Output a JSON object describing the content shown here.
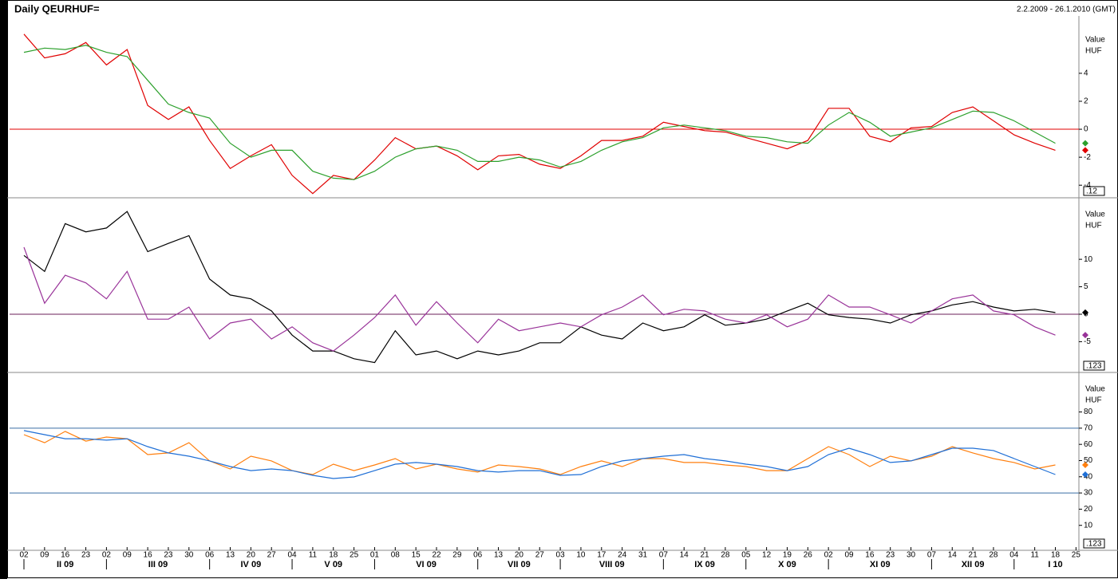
{
  "chart_data": [
    {
      "type": "line",
      "title": "Daily QEURHUF=",
      "subtitle": "2.2.2009 - 26.1.2010 (GMT)",
      "value_label": "Value",
      "unit": "HUF",
      "scale_box": ".12",
      "ylim": [
        -4.9,
        8.1
      ],
      "yticks": [
        -4,
        -2,
        0,
        2,
        4
      ],
      "hlines": [
        {
          "value": 0,
          "color": "#e00000"
        }
      ],
      "series": [
        {
          "color": "#e00000",
          "values": [
            6.8,
            5.1,
            5.4,
            6.2,
            4.6,
            5.7,
            1.7,
            0.7,
            1.6,
            -0.8,
            -2.8,
            -1.9,
            -1.1,
            -3.3,
            -4.6,
            -3.3,
            -3.6,
            -2.2,
            -0.6,
            -1.4,
            -1.2,
            -1.9,
            -2.9,
            -1.9,
            -1.8,
            -2.5,
            -2.8,
            -1.9,
            -0.8,
            -0.8,
            -0.5,
            0.5,
            0.2,
            -0.1,
            -0.2,
            -0.6,
            -1.0,
            -1.4,
            -0.8,
            1.5,
            1.5,
            -0.5,
            -0.9,
            0.1,
            0.2,
            1.2,
            1.6,
            0.6,
            -0.4,
            -1.0,
            -1.5,
            null
          ]
        },
        {
          "color": "#2ca02c",
          "values": [
            5.5,
            5.8,
            5.7,
            6.0,
            5.5,
            5.2,
            3.5,
            1.8,
            1.2,
            0.8,
            -1.0,
            -2.0,
            -1.5,
            -1.5,
            -3.0,
            -3.5,
            -3.6,
            -3.0,
            -2.0,
            -1.4,
            -1.2,
            -1.5,
            -2.3,
            -2.3,
            -2.0,
            -2.2,
            -2.7,
            -2.3,
            -1.5,
            -0.9,
            -0.6,
            0.1,
            0.3,
            0.1,
            -0.1,
            -0.5,
            -0.6,
            -0.9,
            -1.0,
            0.3,
            1.2,
            0.5,
            -0.5,
            -0.2,
            0.1,
            0.7,
            1.3,
            1.2,
            0.6,
            -0.2,
            -1.0,
            null
          ]
        }
      ]
    },
    {
      "type": "line",
      "value_label": "Value",
      "unit": "HUF",
      "scale_box": ".123",
      "ylim": [
        -10.6,
        21.2
      ],
      "yticks": [
        -5,
        0,
        5,
        10
      ],
      "hlines": [
        {
          "value": 0,
          "color": "#6b1f5a"
        }
      ],
      "series": [
        {
          "color": "#000000",
          "values": [
            10.7,
            7.8,
            16.5,
            15,
            15.7,
            18.7,
            11.4,
            12.9,
            14.3,
            6.4,
            3.5,
            2.8,
            0.6,
            -3.8,
            -6.7,
            -6.7,
            -8.1,
            -8.8,
            -3.0,
            -7.4,
            -6.7,
            -8.1,
            -6.7,
            -7.4,
            -6.7,
            -5.2,
            -5.2,
            -2.3,
            -3.8,
            -4.5,
            -1.6,
            -3.0,
            -2.3,
            -0.1,
            -2.0,
            -1.6,
            -0.9,
            0.6,
            2.0,
            -0.1,
            -0.6,
            -0.9,
            -1.6,
            -0.1,
            0.6,
            1.7,
            2.3,
            1.3,
            0.6,
            0.9,
            0.3,
            null
          ]
        },
        {
          "color": "#993399",
          "values": [
            12.2,
            2.0,
            7.1,
            5.7,
            2.8,
            7.8,
            -0.9,
            -0.9,
            1.3,
            -4.5,
            -1.6,
            -0.9,
            -4.5,
            -2.3,
            -5.2,
            -6.7,
            -3.8,
            -0.6,
            3.5,
            -2.0,
            2.3,
            -1.6,
            -5.2,
            -0.9,
            -3.0,
            -2.3,
            -1.6,
            -2.3,
            -0.1,
            1.3,
            3.5,
            -0.1,
            0.9,
            0.6,
            -0.9,
            -1.6,
            -0.1,
            -2.3,
            -0.9,
            3.5,
            1.3,
            1.3,
            -0.1,
            -1.6,
            0.6,
            2.8,
            3.5,
            0.6,
            -0.1,
            -2.3,
            -3.8,
            null
          ]
        }
      ]
    },
    {
      "type": "line",
      "value_label": "Value",
      "unit": "HUF",
      "scale_box": ".123",
      "ylim": [
        -5.4,
        104.4
      ],
      "yticks": [
        10,
        20,
        30,
        40,
        50,
        60,
        70,
        80
      ],
      "hlines": [
        {
          "value": 70,
          "color": "#3a6ea5"
        },
        {
          "value": 30,
          "color": "#3a6ea5"
        }
      ],
      "categories": [
        "02",
        "09",
        "16",
        "23",
        "02",
        "09",
        "16",
        "23",
        "30",
        "06",
        "13",
        "20",
        "27",
        "04",
        "11",
        "18",
        "25",
        "01",
        "08",
        "15",
        "22",
        "29",
        "06",
        "13",
        "20",
        "27",
        "03",
        "10",
        "17",
        "24",
        "31",
        "07",
        "14",
        "21",
        "28",
        "05",
        "12",
        "19",
        "26",
        "02",
        "09",
        "16",
        "23",
        "30",
        "07",
        "14",
        "21",
        "28",
        "04",
        "11",
        "18",
        "25"
      ],
      "months": [
        "II 09",
        "III 09",
        "IV 09",
        "V 09",
        "VI 09",
        "VII 09",
        "VIII 09",
        "IX 09",
        "X 09",
        "XI 09",
        "XII 09",
        "I 10"
      ],
      "series": [
        {
          "color": "#ff7f0e",
          "values": [
            66,
            61,
            68,
            62,
            64.5,
            63.5,
            53.7,
            54.7,
            61,
            49.8,
            44.8,
            52.7,
            49.8,
            43.8,
            41.4,
            47.8,
            43.8,
            47.3,
            51.2,
            44.8,
            47.8,
            44.8,
            42.9,
            47.3,
            46.3,
            44.8,
            41.4,
            46.3,
            49.8,
            46.3,
            51.2,
            51.2,
            48.8,
            48.8,
            47.3,
            46.3,
            43.8,
            43.8,
            51.2,
            58.6,
            53.7,
            46.3,
            52.7,
            49.8,
            52.7,
            58.6,
            54.7,
            51.2,
            48.8,
            44.8,
            47.3,
            null
          ]
        },
        {
          "color": "#1f6fd6",
          "values": [
            68.5,
            66,
            63.5,
            63.5,
            62.6,
            63.5,
            58.6,
            54.7,
            52.7,
            49.8,
            46.3,
            43.8,
            44.8,
            43.8,
            40.9,
            38.9,
            39.9,
            43.8,
            47.8,
            48.8,
            47.8,
            46.3,
            43.8,
            42.9,
            43.8,
            43.8,
            40.9,
            41.4,
            46.3,
            49.8,
            51.2,
            52.7,
            53.7,
            51.2,
            49.8,
            47.8,
            46.3,
            43.8,
            46.3,
            53.7,
            57.6,
            53.7,
            48.8,
            49.8,
            53.7,
            57.6,
            57.6,
            56.2,
            51.2,
            46.3,
            41.4,
            null
          ]
        }
      ]
    }
  ]
}
